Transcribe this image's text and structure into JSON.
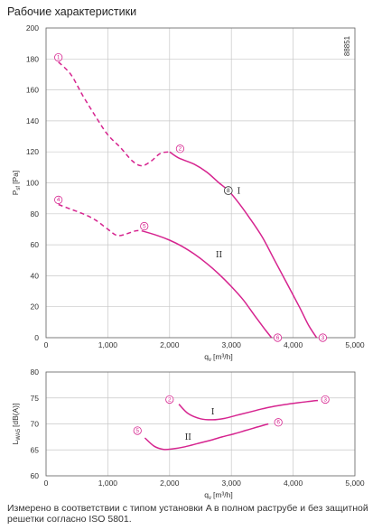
{
  "page": {
    "title": "Рабочие характеристики",
    "footnote": "Измерено в соответствии с типом установки A в полном раструбе и без защитной решетки согласно ISO 5801."
  },
  "chart_data": [
    {
      "type": "line",
      "code": "88851",
      "xlabel": "q",
      "xlabel_sub": "v",
      "xlabel_unit": "[m³/h]",
      "ylabel": "P",
      "ylabel_sub": "sf",
      "ylabel_unit": "[Pa]",
      "xlim": [
        0,
        5000
      ],
      "ylim": [
        0,
        200
      ],
      "xticks": [
        "0",
        "1,000",
        "2,000",
        "3,000",
        "4,000",
        "5,000"
      ],
      "xtick_values": [
        0,
        1000,
        2000,
        3000,
        4000,
        5000
      ],
      "yticks": [
        "0",
        "20",
        "40",
        "60",
        "80",
        "100",
        "120",
        "140",
        "160",
        "180",
        "200"
      ],
      "ytick_values": [
        0,
        20,
        40,
        60,
        80,
        100,
        120,
        140,
        160,
        180,
        200
      ],
      "grid": true,
      "series": [
        {
          "name": "I",
          "style": "dashed",
          "color": "#d6248f",
          "x": [
            200,
            400,
            600,
            800,
            1000,
            1200,
            1400,
            1550,
            1700,
            1850,
            2000
          ],
          "y": [
            178,
            170,
            156,
            143,
            131,
            123,
            114,
            111,
            114,
            119,
            120
          ]
        },
        {
          "name": "I",
          "style": "solid",
          "color": "#d6248f",
          "x": [
            2000,
            2150,
            2400,
            2600,
            2800,
            2950,
            3100,
            3300,
            3500,
            3700,
            3900,
            4100,
            4250,
            4380
          ],
          "y": [
            120,
            116,
            112,
            107,
            100,
            95,
            88,
            77,
            65,
            50,
            35,
            20,
            8,
            0
          ]
        },
        {
          "name": "II",
          "style": "dashed",
          "color": "#d6248f",
          "x": [
            200,
            400,
            600,
            800,
            1000,
            1150,
            1300,
            1450,
            1550
          ],
          "y": [
            86,
            83,
            80,
            76,
            70,
            66,
            67,
            69,
            69
          ]
        },
        {
          "name": "II",
          "style": "solid",
          "color": "#d6248f",
          "x": [
            1550,
            1800,
            2000,
            2200,
            2400,
            2600,
            2800,
            3000,
            3200,
            3400,
            3550,
            3650
          ],
          "y": [
            69,
            66,
            63,
            59,
            54,
            48,
            41,
            33,
            24,
            13,
            5,
            0
          ]
        }
      ],
      "markers": [
        {
          "label": "1",
          "x": 200,
          "y": 181
        },
        {
          "label": "2",
          "x": 2170,
          "y": 122
        },
        {
          "label": "3",
          "x": 4480,
          "y": 0
        },
        {
          "label": "4",
          "x": 200,
          "y": 89
        },
        {
          "label": "5",
          "x": 1590,
          "y": 72
        },
        {
          "label": "6",
          "x": 3750,
          "y": 0
        }
      ],
      "operating_point": {
        "label": "8",
        "x": 2950,
        "y": 95
      },
      "curve_labels": [
        {
          "text": "I",
          "x": 3120,
          "y": 93
        },
        {
          "text": "II",
          "x": 2800,
          "y": 52
        }
      ]
    },
    {
      "type": "line",
      "xlabel": "q",
      "xlabel_sub": "v",
      "xlabel_unit": "[m³/h]",
      "ylabel": "L",
      "ylabel_sub": "WA5",
      "ylabel_unit": "[dB(A)]",
      "xlim": [
        0,
        5000
      ],
      "ylim": [
        60,
        80
      ],
      "xticks": [
        "0",
        "1,000",
        "2,000",
        "3,000",
        "4,000",
        "5,000"
      ],
      "xtick_values": [
        0,
        1000,
        2000,
        3000,
        4000,
        5000
      ],
      "yticks": [
        "60",
        "65",
        "70",
        "75",
        "80"
      ],
      "ytick_values": [
        60,
        65,
        70,
        75,
        80
      ],
      "grid": true,
      "series": [
        {
          "name": "I",
          "style": "solid",
          "color": "#d6248f",
          "x": [
            2150,
            2300,
            2500,
            2700,
            2900,
            3100,
            3300,
            3500,
            3700,
            3900,
            4100,
            4300,
            4400
          ],
          "y": [
            73.8,
            72.0,
            71.0,
            70.8,
            71.1,
            71.7,
            72.3,
            72.9,
            73.4,
            73.8,
            74.1,
            74.4,
            74.5
          ]
        },
        {
          "name": "II",
          "style": "solid",
          "color": "#d6248f",
          "x": [
            1600,
            1750,
            1900,
            2050,
            2250,
            2450,
            2650,
            2850,
            3050,
            3250,
            3450,
            3600
          ],
          "y": [
            67.3,
            65.7,
            65.1,
            65.2,
            65.6,
            66.2,
            66.8,
            67.5,
            68.1,
            68.8,
            69.5,
            70.0
          ]
        }
      ],
      "markers": [
        {
          "label": "2",
          "x": 2000,
          "y": 74.7
        },
        {
          "label": "3",
          "x": 4520,
          "y": 74.7
        },
        {
          "label": "5",
          "x": 1480,
          "y": 68.7
        },
        {
          "label": "6",
          "x": 3760,
          "y": 70.3
        }
      ],
      "curve_labels": [
        {
          "text": "I",
          "x": 2700,
          "y": 71.8
        },
        {
          "text": "II",
          "x": 2300,
          "y": 67.0
        }
      ]
    }
  ]
}
